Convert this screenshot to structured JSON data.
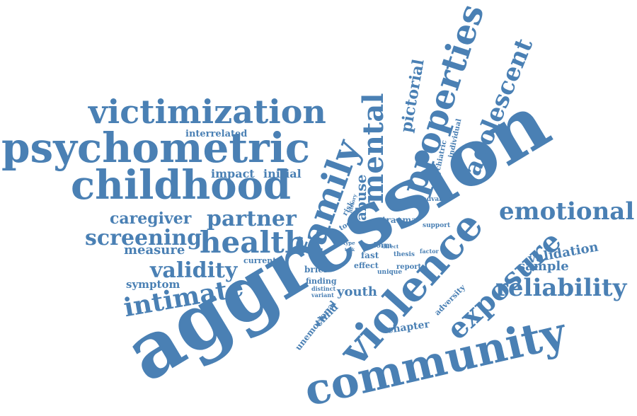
{
  "color": "#4a80b4",
  "words": {
    "aggression": "aggression",
    "community": "community",
    "violence": "violence",
    "psychometric": "psychometric",
    "childhood": "childhood",
    "victimization": "victimization",
    "exposure": "exposure",
    "family": "family",
    "properties": "properties",
    "mental": "mental",
    "adolescent": "adolescent",
    "emotional": "emotional",
    "reliability": "reliability",
    "health": "health",
    "intimate": "intimate",
    "validity": "validity",
    "partner": "partner",
    "screening": "screening",
    "caregiver": "caregiver",
    "pictorial": "pictorial",
    "validation": "validation",
    "sample": "sample",
    "measure": "measure",
    "impact": "impact",
    "initial": "initial",
    "interrelated": "interrelated",
    "symptom": "symptom",
    "youth": "youth",
    "abuse": "abuse",
    "trauma": "trauma",
    "chapter": "chapter",
    "brief": "brief",
    "finding": "finding",
    "unemotional": "unemotional",
    "current": "current",
    "child": "child",
    "adversity": "adversity",
    "fast": "fast",
    "report": "report",
    "effect": "effect",
    "form": "form",
    "thesis": "thesis",
    "unique": "unique",
    "distinct": "distinct",
    "variant": "variant",
    "advance": "advance",
    "support": "support",
    "factor": "factor",
    "psychiatric": "psychiatric",
    "individual": "individual",
    "risk": "risk",
    "tool": "tool",
    "history": "history",
    "type": "type",
    "task": "task",
    "direct": "direct"
  }
}
